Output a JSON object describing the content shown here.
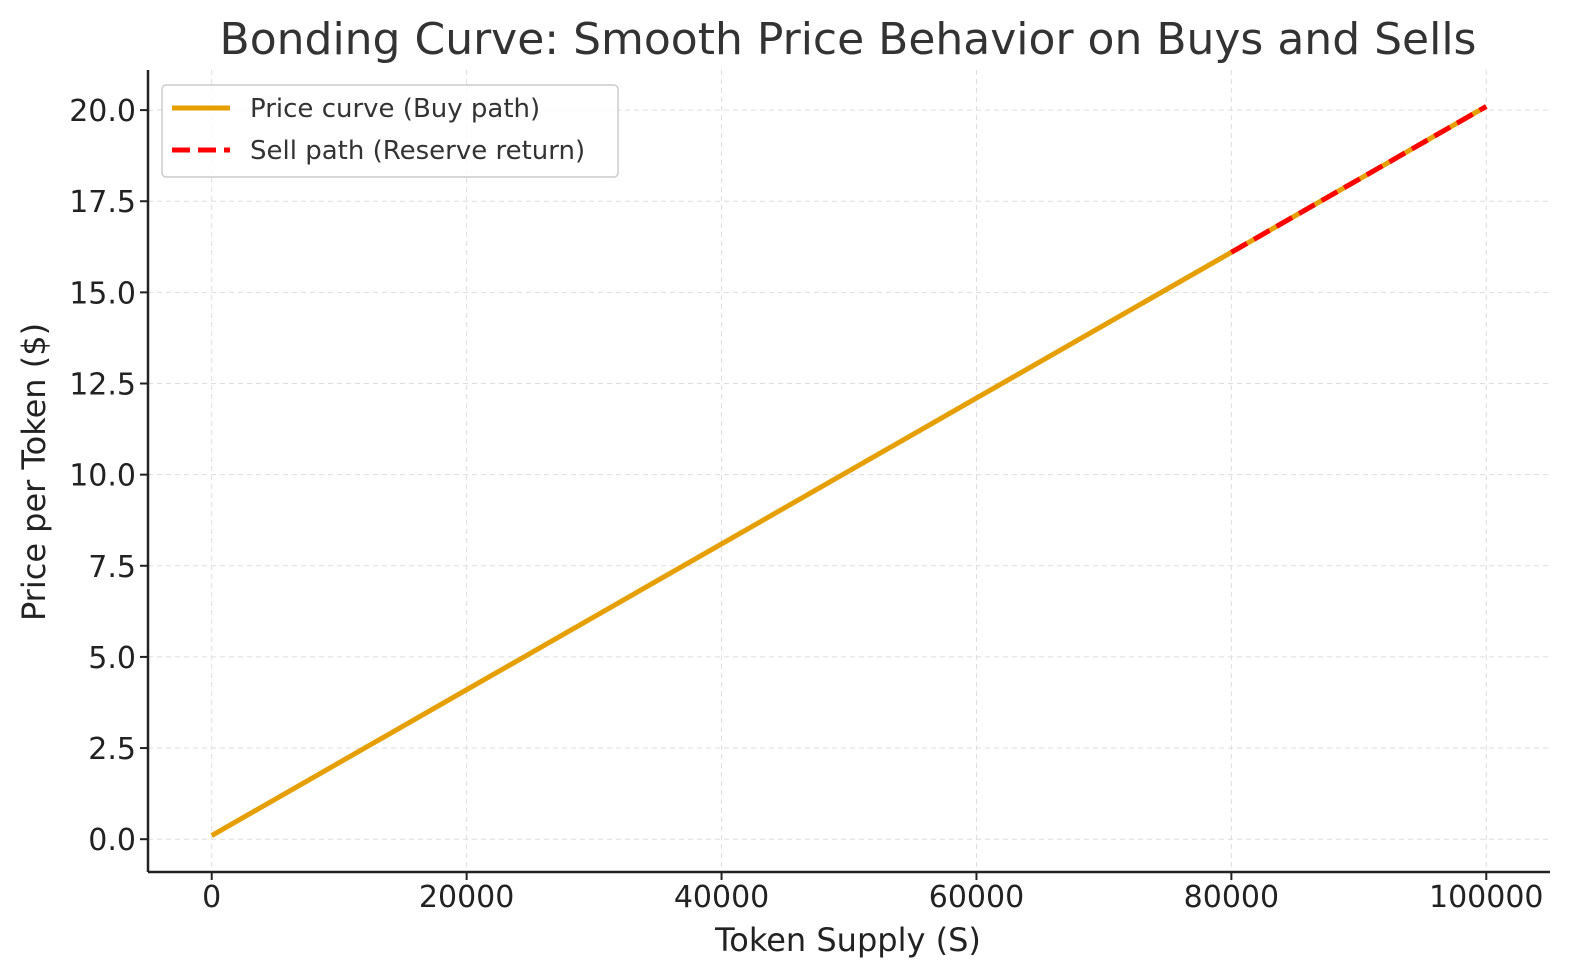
{
  "chart_data": {
    "type": "line",
    "title": "Bonding Curve: Smooth Price Behavior on Buys and Sells",
    "xlabel": "Token Supply (S)",
    "ylabel": "Price per Token ($)",
    "xlim": [
      -5000,
      105000
    ],
    "ylim": [
      -0.9,
      21.1
    ],
    "x_ticks": [
      0,
      20000,
      40000,
      60000,
      80000,
      100000
    ],
    "x_tick_labels": [
      "0",
      "20000",
      "40000",
      "60000",
      "80000",
      "100000"
    ],
    "y_ticks": [
      0,
      2.5,
      5,
      7.5,
      10,
      12.5,
      15,
      17.5,
      20
    ],
    "y_tick_labels": [
      "0.0",
      "2.5",
      "5.0",
      "7.5",
      "10.0",
      "12.5",
      "15.0",
      "17.5",
      "20.0"
    ],
    "grid": true,
    "legend_position": "top-left",
    "series": [
      {
        "name": "Price curve (Buy path)",
        "color": "#E69F00",
        "style": "solid",
        "x": [
          0,
          20000,
          40000,
          60000,
          80000,
          100000
        ],
        "y": [
          0.1,
          4.1,
          8.1,
          12.1,
          16.1,
          20.1
        ]
      },
      {
        "name": "Sell path (Reserve return)",
        "color": "#FF0000",
        "style": "dashed",
        "x": [
          80000,
          90000,
          100000
        ],
        "y": [
          16.1,
          18.1,
          20.1
        ]
      }
    ]
  }
}
